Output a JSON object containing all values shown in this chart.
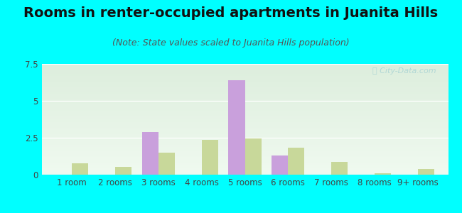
{
  "title": "Rooms in renter-occupied apartments in Juanita Hills",
  "subtitle": "(Note: State values scaled to Juanita Hills population)",
  "categories": [
    "1 room",
    "2 rooms",
    "3 rooms",
    "4 rooms",
    "5 rooms",
    "6 rooms",
    "7 rooms",
    "8 rooms",
    "9+ rooms"
  ],
  "juanita_hills": [
    0,
    0,
    2.9,
    0,
    6.4,
    1.3,
    0,
    0,
    0
  ],
  "high_point": [
    0.75,
    0.55,
    1.5,
    2.35,
    2.45,
    1.85,
    0.85,
    0.1,
    0.4
  ],
  "juanita_color": "#c9a0dc",
  "high_point_color": "#c8d89a",
  "bg_color": "#00ffff",
  "ylim": [
    0,
    7.5
  ],
  "yticks": [
    0,
    2.5,
    5,
    7.5
  ],
  "bar_width": 0.38,
  "title_fontsize": 14,
  "subtitle_fontsize": 9,
  "tick_fontsize": 8.5,
  "legend_fontsize": 9.5
}
